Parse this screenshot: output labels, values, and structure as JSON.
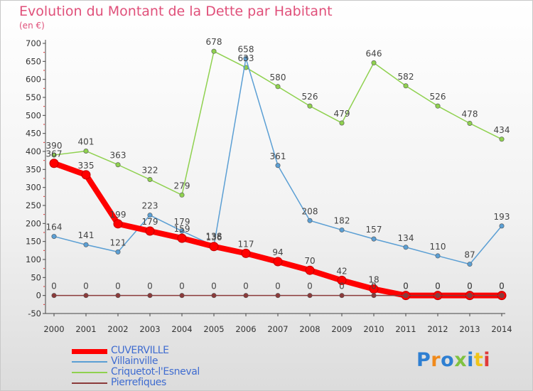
{
  "chart_data": {
    "type": "line",
    "title": "Evolution du Montant de la Dette par Habitant",
    "subtitle": "(en €)",
    "x": [
      "2000",
      "2001",
      "2002",
      "2003",
      "2004",
      "2005",
      "2006",
      "2007",
      "2008",
      "2009",
      "2010",
      "2011",
      "2012",
      "2013",
      "2014"
    ],
    "ylim": [
      -50,
      700
    ],
    "yticks": [
      -50,
      0,
      50,
      100,
      150,
      200,
      250,
      300,
      350,
      400,
      450,
      500,
      550,
      600,
      650,
      700
    ],
    "grid": false,
    "legend_position": "bottom-left",
    "series": [
      {
        "name": "CUVERVILLE",
        "color": "#ff0000",
        "values": [
          367,
          335,
          199,
          179,
          159,
          136,
          117,
          94,
          70,
          42,
          18,
          0,
          0,
          0,
          0
        ]
      },
      {
        "name": "Villainville",
        "color": "#5b9fd4",
        "values": [
          164,
          141,
          121,
          223,
          179,
          138,
          658,
          361,
          208,
          182,
          157,
          134,
          110,
          87,
          193
        ]
      },
      {
        "name": "Criquetot-l'Esneval",
        "color": "#8fd14f",
        "values": [
          390,
          401,
          363,
          322,
          279,
          678,
          633,
          580,
          526,
          479,
          646,
          582,
          526,
          478,
          434
        ]
      },
      {
        "name": "Pierrefiques",
        "color": "#8b3a3a",
        "values": [
          0,
          0,
          0,
          0,
          0,
          0,
          0,
          0,
          0,
          0,
          0,
          0,
          0,
          0,
          0
        ]
      }
    ]
  },
  "branding": {
    "logo_text": "Proxiti",
    "logo_colors": [
      "#2e7fd2",
      "#f08a1c",
      "#2e7fd2",
      "#7fc241",
      "#2e7fd2",
      "#f0c419",
      "#e03a3a"
    ]
  }
}
